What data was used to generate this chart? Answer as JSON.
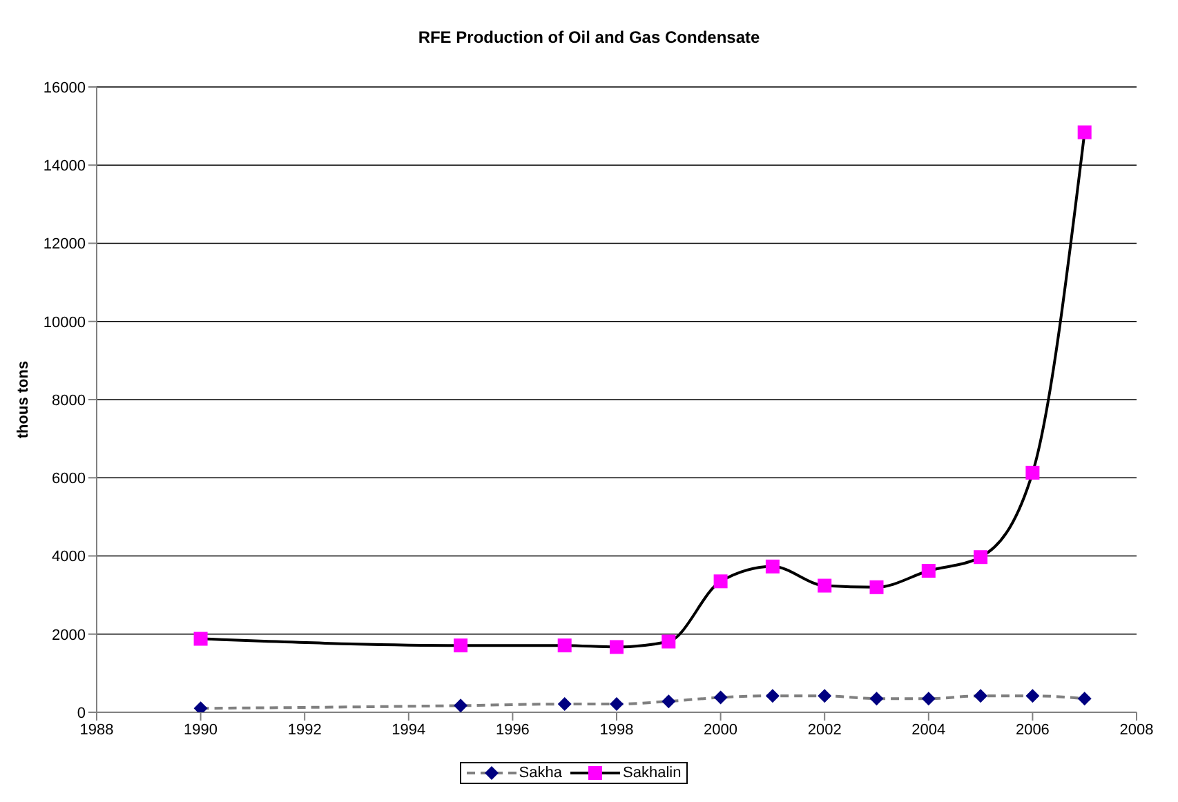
{
  "chart_data": {
    "type": "line",
    "title": "RFE Production of Oil and Gas Condensate",
    "ylabel": "thous tons",
    "x": [
      1990,
      1995,
      1997,
      1998,
      1999,
      2000,
      2001,
      2002,
      2003,
      2004,
      2005,
      2006,
      2007
    ],
    "series": [
      {
        "name": "Sakha",
        "color": "#808080",
        "colors": [
          "#000080",
          "#000080",
          "#000080",
          "#000080",
          "#000080",
          "#000080",
          "#000080",
          "#000080",
          "#000080",
          "#000080",
          "#000080",
          "#000080",
          "#000080"
        ],
        "line_style": "dashed",
        "marker": "diamond",
        "values": [
          100,
          170,
          210,
          210,
          280,
          380,
          420,
          420,
          350,
          350,
          420,
          420,
          350
        ]
      },
      {
        "name": "Sakhalin",
        "color": "#000000",
        "colors": [
          "#ff00ff",
          "#ff00ff",
          "#ff00ff",
          "#ff00ff",
          "#ff00ff",
          "#ff00ff",
          "#ff00ff",
          "#ff00ff",
          "#ff00ff",
          "#ff00ff",
          "#ff00ff",
          "#ff00ff",
          "#ff00ff"
        ],
        "line_style": "solid",
        "marker": "square",
        "values": [
          1880,
          1710,
          1710,
          1670,
          1810,
          3350,
          3730,
          3240,
          3200,
          3620,
          3970,
          6130,
          14840
        ]
      }
    ],
    "xlim": [
      1988,
      2008
    ],
    "xticks": [
      1988,
      1990,
      1992,
      1994,
      1996,
      1998,
      2000,
      2002,
      2004,
      2006,
      2008
    ],
    "ylim": [
      0,
      16000
    ],
    "yticks": [
      0,
      2000,
      4000,
      6000,
      8000,
      10000,
      12000,
      14000,
      16000
    ],
    "grid": "y",
    "legend": "bottom"
  }
}
